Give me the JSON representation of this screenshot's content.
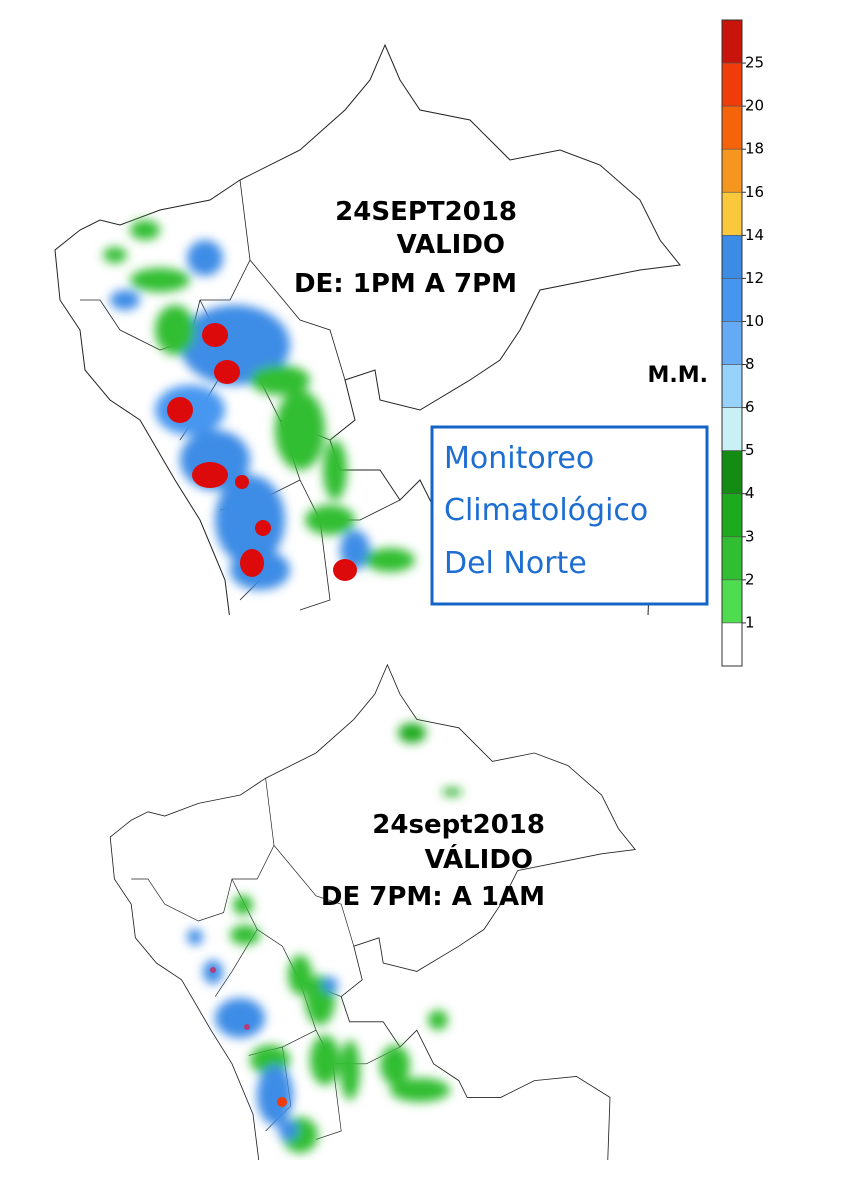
{
  "maps": [
    {
      "title_lines": [
        "24SEPT2018",
        "VALIDO",
        "DE: 1PM A 7PM"
      ]
    },
    {
      "title_lines": [
        "24sept2018",
        "VÁLIDO",
        "DE 7PM: A 1AM"
      ]
    }
  ],
  "legend": {
    "unit": "M.M.",
    "labels": [
      25,
      20,
      18,
      16,
      14,
      12,
      10,
      8,
      6,
      5,
      4,
      3,
      2,
      1
    ],
    "colors": [
      "#c8140a",
      "#f03c0a",
      "#f5640a",
      "#f5961e",
      "#fac83c",
      "#3c8ce6",
      "#4696f0",
      "#64aaf5",
      "#96d2fa",
      "#c8f0f5",
      "#148c14",
      "#1eaa1e",
      "#32be32",
      "#50dc50",
      "#ffffff"
    ]
  },
  "box": {
    "lines": [
      "Monitoreo",
      "Climatológico",
      "Del Norte"
    ]
  }
}
